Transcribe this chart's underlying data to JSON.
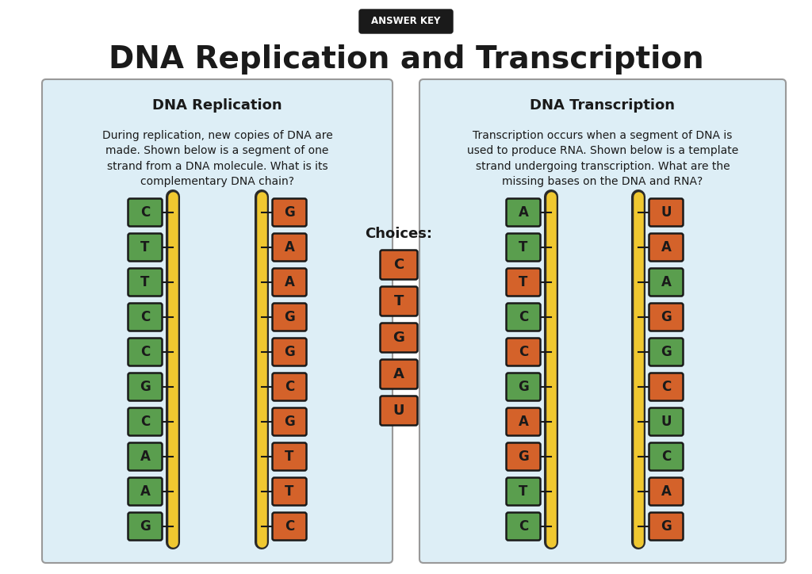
{
  "title": "DNA Replication and Transcription",
  "answer_key_label": "ANSWER KEY",
  "bg_color": "#ffffff",
  "panel_bg_color": "#ddeef6",
  "replication_title": "DNA Replication",
  "replication_desc": "During replication, new copies of DNA are\nmade. Shown below is a segment of one\nstrand from a DNA molecule. What is its\ncomplementary DNA chain?",
  "transcription_title": "DNA Transcription",
  "transcription_desc": "Transcription occurs when a segment of DNA is\nused to produce RNA. Shown below is a template\nstrand undergoing transcription. What are the\nmissing bases on the DNA and RNA?",
  "choices_label": "Choices:",
  "choices": [
    "C",
    "T",
    "G",
    "A",
    "U"
  ],
  "repl_left_bases": [
    "C",
    "T",
    "T",
    "C",
    "C",
    "G",
    "C",
    "A",
    "A",
    "G"
  ],
  "repl_left_colors": [
    "#5a9e4e",
    "#5a9e4e",
    "#5a9e4e",
    "#5a9e4e",
    "#5a9e4e",
    "#5a9e4e",
    "#5a9e4e",
    "#5a9e4e",
    "#5a9e4e",
    "#5a9e4e"
  ],
  "repl_right_bases": [
    "G",
    "A",
    "A",
    "G",
    "G",
    "C",
    "G",
    "T",
    "T",
    "C"
  ],
  "repl_right_colors": [
    "#d4622a",
    "#d4622a",
    "#d4622a",
    "#d4622a",
    "#d4622a",
    "#d4622a",
    "#d4622a",
    "#d4622a",
    "#d4622a",
    "#d4622a"
  ],
  "trans_left_bases": [
    "A",
    "T",
    "T",
    "C",
    "C",
    "G",
    "A",
    "G",
    "T",
    "C"
  ],
  "trans_left_colors": [
    "#5a9e4e",
    "#5a9e4e",
    "#d4622a",
    "#5a9e4e",
    "#d4622a",
    "#5a9e4e",
    "#d4622a",
    "#d4622a",
    "#5a9e4e",
    "#5a9e4e"
  ],
  "trans_right_bases": [
    "U",
    "A",
    "A",
    "G",
    "G",
    "C",
    "U",
    "C",
    "A",
    "G"
  ],
  "trans_right_colors": [
    "#d4622a",
    "#d4622a",
    "#5a9e4e",
    "#d4622a",
    "#5a9e4e",
    "#d4622a",
    "#5a9e4e",
    "#5a9e4e",
    "#d4622a",
    "#d4622a"
  ],
  "ladder_color": "#f0c830",
  "ladder_border": "#2a2a2a"
}
